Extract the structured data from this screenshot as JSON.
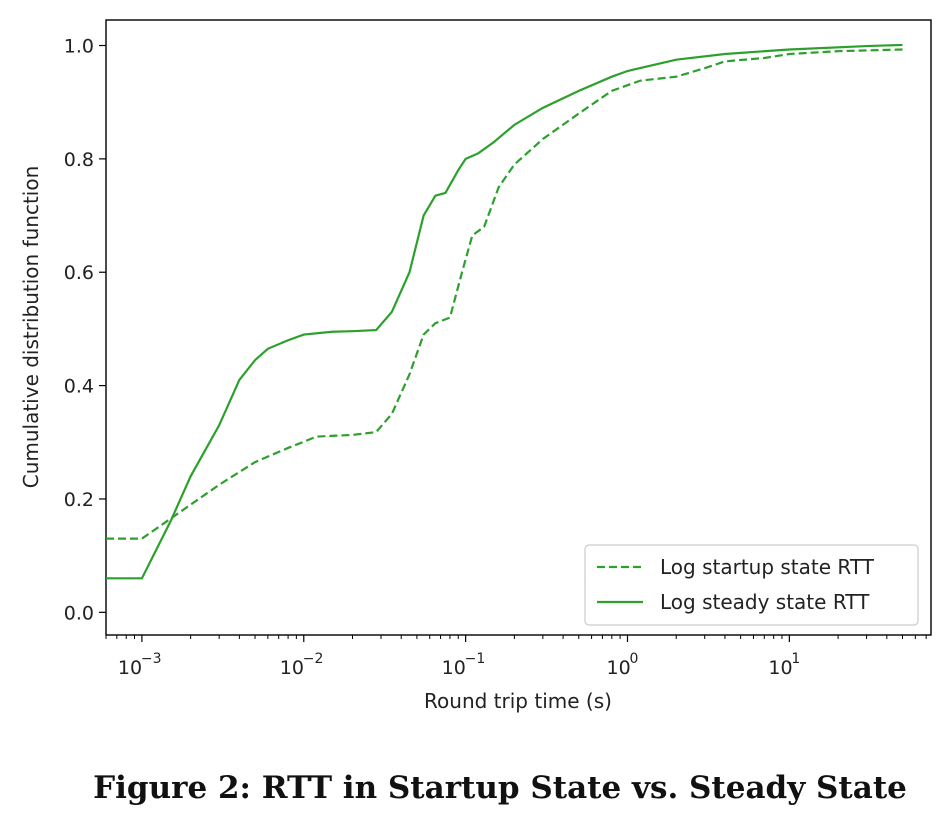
{
  "chart_data": {
    "type": "line",
    "xscale": "log",
    "xlim": [
      0.0006,
      75
    ],
    "ylim": [
      -0.04,
      1.045
    ],
    "xlabel": "Round trip time (s)",
    "ylabel": "Cumulative distribution function",
    "x_ticks": [
      {
        "value": 0.001,
        "base": "10",
        "exp": "−3"
      },
      {
        "value": 0.01,
        "base": "10",
        "exp": "−2"
      },
      {
        "value": 0.1,
        "base": "10",
        "exp": "−1"
      },
      {
        "value": 1,
        "base": "10",
        "exp": "0"
      },
      {
        "value": 10,
        "base": "10",
        "exp": "1"
      }
    ],
    "y_ticks": [
      {
        "value": 0.0,
        "label": "0.0"
      },
      {
        "value": 0.2,
        "label": "0.2"
      },
      {
        "value": 0.4,
        "label": "0.4"
      },
      {
        "value": 0.6,
        "label": "0.6"
      },
      {
        "value": 0.8,
        "label": "0.8"
      },
      {
        "value": 1.0,
        "label": "1.0"
      }
    ],
    "legend_position": "lower-right",
    "series": [
      {
        "name": "Log startup state RTT",
        "style": "dashed",
        "color": "#2ca02c",
        "points": [
          [
            0.0006,
            0.13
          ],
          [
            0.001,
            0.13
          ],
          [
            0.0015,
            0.165
          ],
          [
            0.002,
            0.19
          ],
          [
            0.003,
            0.225
          ],
          [
            0.005,
            0.265
          ],
          [
            0.008,
            0.29
          ],
          [
            0.012,
            0.31
          ],
          [
            0.02,
            0.313
          ],
          [
            0.028,
            0.318
          ],
          [
            0.035,
            0.35
          ],
          [
            0.045,
            0.42
          ],
          [
            0.055,
            0.49
          ],
          [
            0.065,
            0.51
          ],
          [
            0.08,
            0.52
          ],
          [
            0.095,
            0.6
          ],
          [
            0.11,
            0.665
          ],
          [
            0.13,
            0.68
          ],
          [
            0.16,
            0.75
          ],
          [
            0.2,
            0.79
          ],
          [
            0.3,
            0.835
          ],
          [
            0.5,
            0.88
          ],
          [
            0.8,
            0.92
          ],
          [
            1.2,
            0.938
          ],
          [
            2,
            0.945
          ],
          [
            3,
            0.96
          ],
          [
            4,
            0.972
          ],
          [
            7,
            0.978
          ],
          [
            10,
            0.985
          ],
          [
            20,
            0.99
          ],
          [
            50,
            0.993
          ]
        ]
      },
      {
        "name": "Log steady state RTT",
        "style": "solid",
        "color": "#2ca02c",
        "points": [
          [
            0.0006,
            0.06
          ],
          [
            0.001,
            0.06
          ],
          [
            0.0015,
            0.16
          ],
          [
            0.002,
            0.24
          ],
          [
            0.003,
            0.33
          ],
          [
            0.004,
            0.41
          ],
          [
            0.005,
            0.445
          ],
          [
            0.006,
            0.465
          ],
          [
            0.008,
            0.48
          ],
          [
            0.01,
            0.49
          ],
          [
            0.015,
            0.495
          ],
          [
            0.02,
            0.496
          ],
          [
            0.028,
            0.498
          ],
          [
            0.035,
            0.53
          ],
          [
            0.045,
            0.6
          ],
          [
            0.055,
            0.7
          ],
          [
            0.065,
            0.735
          ],
          [
            0.075,
            0.74
          ],
          [
            0.09,
            0.78
          ],
          [
            0.1,
            0.8
          ],
          [
            0.12,
            0.81
          ],
          [
            0.15,
            0.83
          ],
          [
            0.2,
            0.86
          ],
          [
            0.3,
            0.89
          ],
          [
            0.5,
            0.92
          ],
          [
            0.8,
            0.945
          ],
          [
            1,
            0.955
          ],
          [
            2,
            0.975
          ],
          [
            4,
            0.985
          ],
          [
            10,
            0.993
          ],
          [
            30,
            0.999
          ],
          [
            50,
            1.001
          ]
        ]
      }
    ]
  },
  "caption": "Figure 2: RTT in Startup State vs. Steady State"
}
